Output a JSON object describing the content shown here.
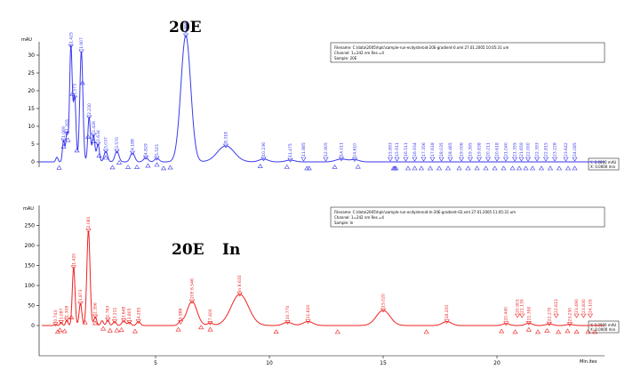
{
  "chart_data": [
    {
      "type": "line",
      "panel": "top",
      "color": "#3a3aee",
      "title": "20E",
      "ylabel": "mAU",
      "y_ticks": [
        "0",
        "5",
        "10",
        "15",
        "20",
        "25",
        "30"
      ],
      "ylim": [
        -2,
        36
      ],
      "xlim": [
        0,
        25.6
      ],
      "info_box": {
        "line1": "Filename: C:\\data\\2005\\hplc\\sample-run-ecdysteroid-20E-gradient-0.xml 27.01.2005 10:05:31 um",
        "line2": "Channel: 1=242 nm Res.=4",
        "line3": "Sample: 20E",
        "scale1": "Y: 0.0000 mAU",
        "scale2": "X: 0.0000 min"
      },
      "peaks": [
        {
          "t": 0.8,
          "h": 1.3,
          "w": 0.05,
          "label": ""
        },
        {
          "t": 1.1,
          "h": 6.0,
          "w": 0.05,
          "label": "1.069"
        },
        {
          "t": 1.25,
          "h": 8.0,
          "w": 0.05,
          "label": "1.205"
        },
        {
          "t": 1.43,
          "h": 32.5,
          "w": 0.06,
          "label": "1.425"
        },
        {
          "t": 1.6,
          "h": 18.0,
          "w": 0.06,
          "label": "1.573"
        },
        {
          "t": 1.9,
          "h": 31.0,
          "w": 0.07,
          "label": "1.907"
        },
        {
          "t": 2.25,
          "h": 12.5,
          "w": 0.06,
          "label": "2.230"
        },
        {
          "t": 2.45,
          "h": 7.5,
          "w": 0.06,
          "label": "2.426"
        },
        {
          "t": 2.65,
          "h": 5.0,
          "w": 0.06,
          "label": "2.634"
        },
        {
          "t": 3.0,
          "h": 3.0,
          "w": 0.08,
          "label": "3.037"
        },
        {
          "t": 3.5,
          "h": 3.0,
          "w": 0.09,
          "label": "3.570"
        },
        {
          "t": 4.2,
          "h": 2.5,
          "w": 0.1,
          "label": "4.188"
        },
        {
          "t": 4.8,
          "h": 1.2,
          "w": 0.1,
          "label": "4.829"
        },
        {
          "t": 5.3,
          "h": 1.0,
          "w": 0.1,
          "label": "5.515"
        },
        {
          "t": 6.6,
          "h": 35.5,
          "w": 0.22,
          "label": "6.555"
        },
        {
          "t": 8.4,
          "h": 4.5,
          "w": 0.38,
          "label": "8.318"
        },
        {
          "t": 10.1,
          "h": 0.8,
          "w": 0.2,
          "label": "10.236"
        },
        {
          "t": 11.3,
          "h": 0.5,
          "w": 0.2,
          "label": "11.475"
        },
        {
          "t": 13.6,
          "h": 0.8,
          "w": 0.25,
          "label": "14.011"
        },
        {
          "t": 14.2,
          "h": 0.6,
          "w": 0.2,
          "label": "14.610"
        }
      ],
      "tick_marks": [
        0.9,
        1.1,
        1.3,
        1.5,
        1.7,
        1.95,
        2.2,
        2.45,
        2.7,
        3.0,
        3.3,
        3.6,
        4.0,
        4.4,
        4.9,
        5.3,
        5.6,
        5.9,
        9.95,
        11.15,
        12.05,
        12.15,
        13.3,
        14.35,
        15.95,
        16.0,
        16.05,
        16.6,
        16.9,
        17.2,
        17.6,
        18.0,
        18.4,
        18.9,
        19.3,
        19.7,
        20.1,
        20.5,
        20.9,
        21.3,
        21.6,
        21.9,
        22.2,
        22.6,
        23.0,
        23.4,
        23.8,
        24.1
      ],
      "tail_labels": [
        {
          "t": 11.9,
          "label": "11.885"
        },
        {
          "t": 12.9,
          "label": "12.905"
        },
        {
          "t": 15.8,
          "label": "15.893"
        },
        {
          "t": 16.1,
          "label": "15.911"
        },
        {
          "t": 16.5,
          "label": "16.511"
        },
        {
          "t": 16.9,
          "label": "16.934"
        },
        {
          "t": 17.3,
          "label": "17.356"
        },
        {
          "t": 17.7,
          "label": "17.618"
        },
        {
          "t": 18.1,
          "label": "18.035"
        },
        {
          "t": 18.5,
          "label": "18.465"
        },
        {
          "t": 19.0,
          "label": "19.006"
        },
        {
          "t": 19.4,
          "label": "19.395"
        },
        {
          "t": 19.8,
          "label": "19.838"
        },
        {
          "t": 20.2,
          "label": "20.211"
        },
        {
          "t": 20.6,
          "label": "20.618"
        },
        {
          "t": 21.0,
          "label": "21.040"
        },
        {
          "t": 21.4,
          "label": "21.355"
        },
        {
          "t": 21.7,
          "label": "21.659"
        },
        {
          "t": 22.0,
          "label": "22.000"
        },
        {
          "t": 22.4,
          "label": "22.393"
        },
        {
          "t": 22.8,
          "label": "22.815"
        },
        {
          "t": 23.2,
          "label": "23.228"
        },
        {
          "t": 23.7,
          "label": "23.642"
        },
        {
          "t": 24.1,
          "label": "24.085"
        }
      ]
    },
    {
      "type": "line",
      "panel": "bottom",
      "color": "#ee2222",
      "ylabel": "mAU",
      "xlabel": "Min.ites",
      "y_ticks": [
        "0",
        "50",
        "100",
        "150",
        "200",
        "250"
      ],
      "ylim": [
        -22,
        272
      ],
      "xlim": [
        -0.1,
        24.6
      ],
      "x_ticks": [
        "5",
        "10",
        "15",
        "20"
      ],
      "annotations": [
        "20E",
        "In"
      ],
      "info_box": {
        "line1": "Filename: C:\\data\\2005\\hplc\\sample-run-ecdysteroid-In-20E-gradient-02.xml 27.01.2005 11:05:31 um",
        "line2": "Channel: 1=242 nm Res.=4",
        "line3": "Sample: In",
        "scale1": "Y: 0.0000 mAU",
        "scale2": "X: 0.0000 min"
      },
      "peaks": [
        {
          "t": 0.6,
          "h": 3.0,
          "w": 0.05,
          "label": "0.743"
        },
        {
          "t": 0.85,
          "h": 8.0,
          "w": 0.05,
          "label": "1.087"
        },
        {
          "t": 1.1,
          "h": 14.0,
          "w": 0.05,
          "label": "1.308"
        },
        {
          "t": 1.4,
          "h": 145.0,
          "w": 0.06,
          "label": "1.420"
        },
        {
          "t": 1.7,
          "h": 55.0,
          "w": 0.06,
          "label": "1.873"
        },
        {
          "t": 2.05,
          "h": 237.0,
          "w": 0.07,
          "label": "2.081"
        },
        {
          "t": 2.35,
          "h": 22.0,
          "w": 0.06,
          "label": "2.356"
        },
        {
          "t": 2.65,
          "h": 12.0,
          "w": 0.06,
          "label": ""
        },
        {
          "t": 2.9,
          "h": 14.0,
          "w": 0.06,
          "label": "2.763"
        },
        {
          "t": 3.2,
          "h": 10.0,
          "w": 0.07,
          "label": "3.211"
        },
        {
          "t": 3.6,
          "h": 12.0,
          "w": 0.08,
          "label": "3.648"
        },
        {
          "t": 3.85,
          "h": 8.0,
          "w": 0.07,
          "label": "3.805"
        },
        {
          "t": 4.25,
          "h": 10.0,
          "w": 0.08,
          "label": "4.295"
        },
        {
          "t": 6.1,
          "h": 8.0,
          "w": 0.1,
          "label": "5.986"
        },
        {
          "t": 6.6,
          "h": 60.0,
          "w": 0.22,
          "label": "20E 6.546"
        },
        {
          "t": 7.4,
          "h": 6.0,
          "w": 0.12,
          "label": "7.400"
        },
        {
          "t": 8.7,
          "h": 78.0,
          "w": 0.38,
          "label": "In 8.635"
        },
        {
          "t": 10.8,
          "h": 8.0,
          "w": 0.2,
          "label": "10.770"
        },
        {
          "t": 11.7,
          "h": 10.0,
          "w": 0.22,
          "label": "11.620"
        },
        {
          "t": 15.0,
          "h": 38.0,
          "w": 0.3,
          "label": "15.020"
        },
        {
          "t": 17.8,
          "h": 10.0,
          "w": 0.2,
          "label": "18.200"
        },
        {
          "t": 20.4,
          "h": 5.0,
          "w": 0.15,
          "label": "20.440"
        },
        {
          "t": 21.4,
          "h": 6.0,
          "w": 0.15,
          "label": "21.390"
        },
        {
          "t": 22.3,
          "h": 4.0,
          "w": 0.15,
          "label": "22.270"
        },
        {
          "t": 23.2,
          "h": 3.0,
          "w": 0.15,
          "label": "23.230"
        }
      ],
      "tick_marks": [
        0.7,
        0.8,
        1.0,
        1.3,
        1.9,
        2.35,
        2.7,
        3.0,
        3.3,
        3.5,
        4.1,
        6.0,
        7.0,
        7.4,
        10.3,
        13.0,
        16.9,
        20.2,
        20.8,
        21.4,
        21.8,
        22.2,
        22.7,
        23.1,
        23.5,
        24.0,
        24.3
      ],
      "tail_labels": [
        {
          "t": 20.9,
          "label": "20.901"
        },
        {
          "t": 21.1,
          "label": "21.135"
        },
        {
          "t": 22.6,
          "label": "22.613"
        },
        {
          "t": 23.5,
          "label": "23.490"
        },
        {
          "t": 23.8,
          "label": "23.830"
        },
        {
          "t": 24.1,
          "label": "24.105"
        }
      ]
    }
  ]
}
